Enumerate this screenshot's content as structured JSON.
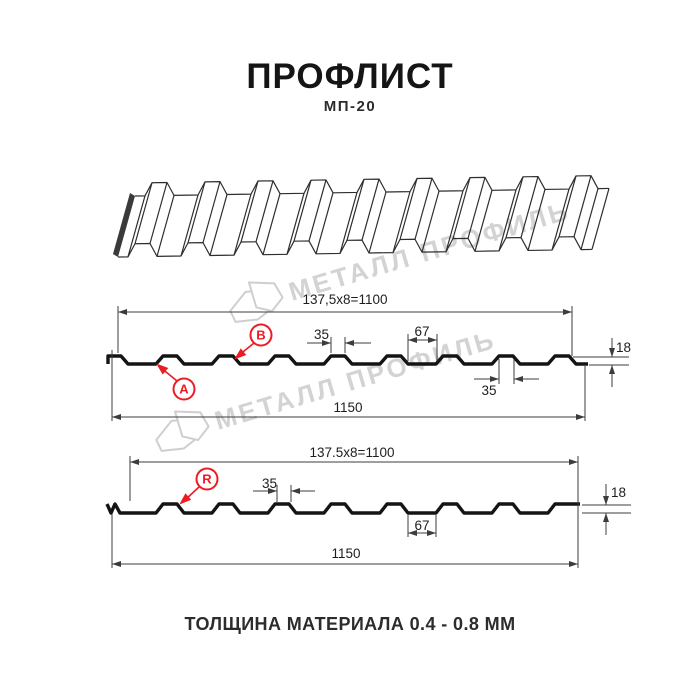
{
  "header": {
    "title": "ПРОФЛИСТ",
    "model": "МП-20"
  },
  "footer": {
    "note": "ТОЛЩИНА МАТЕРИАЛА 0.4 - 0.8 ММ"
  },
  "watermark": {
    "brand": "МЕТАЛЛ ПРОФИЛЬ"
  },
  "colors": {
    "accent_red": "#ed1c24",
    "dimension_line": "#3c3c3c",
    "profile_line": "#141414",
    "watermark_gray": "#d3d3d3",
    "background": "#ffffff"
  },
  "profile_top": {
    "callout_a": "A",
    "callout_b": "B",
    "pitch_dim": "137,5x8=1100",
    "rib_width_dim": "35",
    "valley_width_dim": "67",
    "rib_width_dim_bottom": "35",
    "height_dim": "18",
    "overall_width_dim": "1150"
  },
  "profile_bottom": {
    "callout_r": "R",
    "pitch_dim": "137.5x8=1100",
    "rib_width_dim": "35",
    "valley_width_dim": "67",
    "height_dim": "18",
    "overall_width_dim": "1150"
  }
}
